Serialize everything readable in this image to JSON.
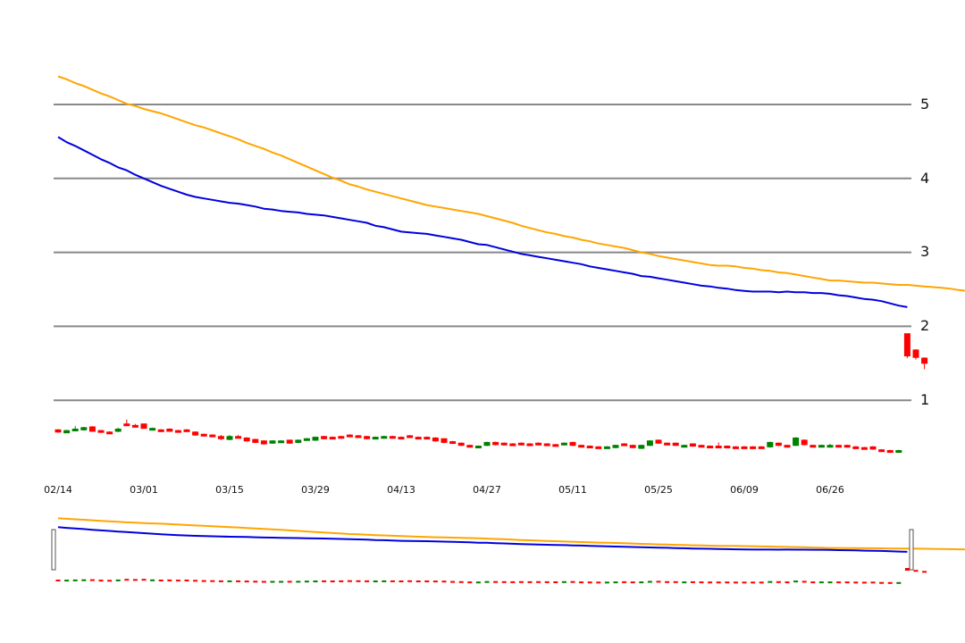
{
  "chart_data": {
    "type": "candlestick",
    "title": "",
    "xlabel": "",
    "ylabel": "",
    "ylim": [
      0,
      5.5
    ],
    "yticks": [
      "1",
      "2",
      "3",
      "4",
      "5"
    ],
    "xticks": [
      "02/14",
      "03/01",
      "03/15",
      "03/29",
      "04/13",
      "04/27",
      "05/11",
      "05/25",
      "06/09",
      "06/26"
    ],
    "grid": true,
    "up_color": "#008000",
    "down_color": "#ff0000",
    "series": [
      {
        "name": "MA long",
        "color": "#ffa500",
        "values": [
          5.38,
          5.34,
          5.29,
          5.25,
          5.2,
          5.15,
          5.11,
          5.06,
          5.01,
          4.98,
          4.94,
          4.91,
          4.88,
          4.84,
          4.8,
          4.76,
          4.72,
          4.69,
          4.65,
          4.61,
          4.57,
          4.53,
          4.48,
          4.44,
          4.4,
          4.35,
          4.31,
          4.26,
          4.21,
          4.16,
          4.11,
          4.06,
          4.01,
          3.97,
          3.92,
          3.89,
          3.85,
          3.82,
          3.79,
          3.76,
          3.73,
          3.7,
          3.67,
          3.64,
          3.62,
          3.6,
          3.58,
          3.56,
          3.54,
          3.52,
          3.49,
          3.46,
          3.43,
          3.4,
          3.36,
          3.33,
          3.3,
          3.27,
          3.25,
          3.22,
          3.2,
          3.17,
          3.15,
          3.12,
          3.1,
          3.08,
          3.06,
          3.03,
          3.0,
          2.98,
          2.95,
          2.93,
          2.91,
          2.89,
          2.87,
          2.85,
          2.83,
          2.82,
          2.82,
          2.81,
          2.79,
          2.78,
          2.76,
          2.75,
          2.73,
          2.72,
          2.7,
          2.68,
          2.66,
          2.64,
          2.62,
          2.62,
          2.61,
          2.6,
          2.59,
          2.59,
          2.58,
          2.57,
          2.56,
          2.56,
          2.55,
          2.54,
          2.53,
          2.52,
          2.51,
          2.49,
          2.48,
          2.46,
          2.44,
          2.43,
          2.4,
          2.38,
          2.36
        ]
      },
      {
        "name": "MA short",
        "color": "#0000dd",
        "values": [
          4.56,
          4.49,
          4.44,
          4.38,
          4.32,
          4.26,
          4.21,
          4.15,
          4.11,
          4.05,
          4.0,
          3.95,
          3.9,
          3.86,
          3.82,
          3.78,
          3.75,
          3.73,
          3.71,
          3.69,
          3.67,
          3.66,
          3.64,
          3.62,
          3.59,
          3.58,
          3.56,
          3.55,
          3.54,
          3.52,
          3.51,
          3.5,
          3.48,
          3.46,
          3.44,
          3.42,
          3.4,
          3.36,
          3.34,
          3.31,
          3.28,
          3.27,
          3.26,
          3.25,
          3.23,
          3.21,
          3.19,
          3.17,
          3.14,
          3.11,
          3.1,
          3.07,
          3.04,
          3.01,
          2.98,
          2.96,
          2.94,
          2.92,
          2.9,
          2.88,
          2.86,
          2.84,
          2.81,
          2.79,
          2.77,
          2.75,
          2.73,
          2.71,
          2.68,
          2.67,
          2.65,
          2.63,
          2.61,
          2.59,
          2.57,
          2.55,
          2.54,
          2.52,
          2.51,
          2.49,
          2.48,
          2.47,
          2.47,
          2.47,
          2.46,
          2.47,
          2.46,
          2.46,
          2.45,
          2.45,
          2.44,
          2.42,
          2.41,
          2.39,
          2.37,
          2.36,
          2.34,
          2.31,
          2.28,
          2.26
        ]
      }
    ],
    "candles": [
      {
        "o": 0.6,
        "c": 0.57,
        "h": 0.61,
        "l": 0.56
      },
      {
        "o": 0.56,
        "c": 0.59,
        "h": 0.6,
        "l": 0.56
      },
      {
        "o": 0.6,
        "c": 0.61,
        "h": 0.65,
        "l": 0.59
      },
      {
        "o": 0.6,
        "c": 0.63,
        "h": 0.64,
        "l": 0.59
      },
      {
        "o": 0.64,
        "c": 0.58,
        "h": 0.65,
        "l": 0.58
      },
      {
        "o": 0.59,
        "c": 0.57,
        "h": 0.6,
        "l": 0.56
      },
      {
        "o": 0.57,
        "c": 0.56,
        "h": 0.58,
        "l": 0.55
      },
      {
        "o": 0.58,
        "c": 0.61,
        "h": 0.63,
        "l": 0.57
      },
      {
        "o": 0.68,
        "c": 0.66,
        "h": 0.74,
        "l": 0.65
      },
      {
        "o": 0.66,
        "c": 0.65,
        "h": 0.68,
        "l": 0.64
      },
      {
        "o": 0.68,
        "c": 0.62,
        "h": 0.68,
        "l": 0.62
      },
      {
        "o": 0.6,
        "c": 0.62,
        "h": 0.63,
        "l": 0.6
      },
      {
        "o": 0.6,
        "c": 0.59,
        "h": 0.61,
        "l": 0.58
      },
      {
        "o": 0.61,
        "c": 0.58,
        "h": 0.62,
        "l": 0.58
      },
      {
        "o": 0.59,
        "c": 0.58,
        "h": 0.6,
        "l": 0.57
      },
      {
        "o": 0.6,
        "c": 0.58,
        "h": 0.61,
        "l": 0.57
      },
      {
        "o": 0.57,
        "c": 0.53,
        "h": 0.58,
        "l": 0.52
      },
      {
        "o": 0.54,
        "c": 0.52,
        "h": 0.55,
        "l": 0.51
      },
      {
        "o": 0.53,
        "c": 0.51,
        "h": 0.54,
        "l": 0.5
      },
      {
        "o": 0.51,
        "c": 0.48,
        "h": 0.53,
        "l": 0.46
      },
      {
        "o": 0.47,
        "c": 0.51,
        "h": 0.53,
        "l": 0.46
      },
      {
        "o": 0.51,
        "c": 0.5,
        "h": 0.53,
        "l": 0.49
      },
      {
        "o": 0.49,
        "c": 0.45,
        "h": 0.5,
        "l": 0.44
      },
      {
        "o": 0.47,
        "c": 0.43,
        "h": 0.48,
        "l": 0.42
      },
      {
        "o": 0.45,
        "c": 0.41,
        "h": 0.46,
        "l": 0.4
      },
      {
        "o": 0.42,
        "c": 0.45,
        "h": 0.46,
        "l": 0.41
      },
      {
        "o": 0.44,
        "c": 0.45,
        "h": 0.46,
        "l": 0.43
      },
      {
        "o": 0.46,
        "c": 0.42,
        "h": 0.47,
        "l": 0.41
      },
      {
        "o": 0.43,
        "c": 0.46,
        "h": 0.47,
        "l": 0.42
      },
      {
        "o": 0.47,
        "c": 0.48,
        "h": 0.49,
        "l": 0.46
      },
      {
        "o": 0.46,
        "c": 0.5,
        "h": 0.51,
        "l": 0.45
      },
      {
        "o": 0.51,
        "c": 0.48,
        "h": 0.52,
        "l": 0.47
      },
      {
        "o": 0.5,
        "c": 0.49,
        "h": 0.51,
        "l": 0.48
      },
      {
        "o": 0.51,
        "c": 0.49,
        "h": 0.52,
        "l": 0.48
      },
      {
        "o": 0.53,
        "c": 0.51,
        "h": 0.54,
        "l": 0.5
      },
      {
        "o": 0.52,
        "c": 0.5,
        "h": 0.53,
        "l": 0.49
      },
      {
        "o": 0.51,
        "c": 0.48,
        "h": 0.52,
        "l": 0.47
      },
      {
        "o": 0.48,
        "c": 0.5,
        "h": 0.51,
        "l": 0.47
      },
      {
        "o": 0.49,
        "c": 0.51,
        "h": 0.52,
        "l": 0.48
      },
      {
        "o": 0.51,
        "c": 0.49,
        "h": 0.52,
        "l": 0.48
      },
      {
        "o": 0.5,
        "c": 0.49,
        "h": 0.51,
        "l": 0.48
      },
      {
        "o": 0.52,
        "c": 0.5,
        "h": 0.53,
        "l": 0.49
      },
      {
        "o": 0.5,
        "c": 0.49,
        "h": 0.51,
        "l": 0.48
      },
      {
        "o": 0.5,
        "c": 0.49,
        "h": 0.51,
        "l": 0.48
      },
      {
        "o": 0.49,
        "c": 0.45,
        "h": 0.5,
        "l": 0.44
      },
      {
        "o": 0.48,
        "c": 0.43,
        "h": 0.48,
        "l": 0.42
      },
      {
        "o": 0.44,
        "c": 0.42,
        "h": 0.45,
        "l": 0.41
      },
      {
        "o": 0.42,
        "c": 0.39,
        "h": 0.43,
        "l": 0.38
      },
      {
        "o": 0.39,
        "c": 0.38,
        "h": 0.4,
        "l": 0.37
      },
      {
        "o": 0.37,
        "c": 0.38,
        "h": 0.39,
        "l": 0.36
      },
      {
        "o": 0.39,
        "c": 0.43,
        "h": 0.44,
        "l": 0.38
      },
      {
        "o": 0.43,
        "c": 0.4,
        "h": 0.44,
        "l": 0.39
      },
      {
        "o": 0.42,
        "c": 0.4,
        "h": 0.43,
        "l": 0.39
      },
      {
        "o": 0.41,
        "c": 0.4,
        "h": 0.42,
        "l": 0.39
      },
      {
        "o": 0.42,
        "c": 0.4,
        "h": 0.43,
        "l": 0.39
      },
      {
        "o": 0.41,
        "c": 0.4,
        "h": 0.42,
        "l": 0.39
      },
      {
        "o": 0.42,
        "c": 0.4,
        "h": 0.43,
        "l": 0.39
      },
      {
        "o": 0.41,
        "c": 0.4,
        "h": 0.42,
        "l": 0.39
      },
      {
        "o": 0.4,
        "c": 0.39,
        "h": 0.41,
        "l": 0.38
      },
      {
        "o": 0.4,
        "c": 0.42,
        "h": 0.43,
        "l": 0.39
      },
      {
        "o": 0.43,
        "c": 0.39,
        "h": 0.44,
        "l": 0.38
      },
      {
        "o": 0.39,
        "c": 0.37,
        "h": 0.4,
        "l": 0.36
      },
      {
        "o": 0.38,
        "c": 0.36,
        "h": 0.39,
        "l": 0.35
      },
      {
        "o": 0.37,
        "c": 0.36,
        "h": 0.38,
        "l": 0.35
      },
      {
        "o": 0.36,
        "c": 0.37,
        "h": 0.38,
        "l": 0.35
      },
      {
        "o": 0.36,
        "c": 0.39,
        "h": 0.4,
        "l": 0.35
      },
      {
        "o": 0.41,
        "c": 0.39,
        "h": 0.42,
        "l": 0.38
      },
      {
        "o": 0.39,
        "c": 0.36,
        "h": 0.4,
        "l": 0.35
      },
      {
        "o": 0.35,
        "c": 0.39,
        "h": 0.4,
        "l": 0.34
      },
      {
        "o": 0.39,
        "c": 0.45,
        "h": 0.46,
        "l": 0.38
      },
      {
        "o": 0.46,
        "c": 0.42,
        "h": 0.47,
        "l": 0.41
      },
      {
        "o": 0.42,
        "c": 0.41,
        "h": 0.43,
        "l": 0.4
      },
      {
        "o": 0.42,
        "c": 0.39,
        "h": 0.43,
        "l": 0.38
      },
      {
        "o": 0.38,
        "c": 0.39,
        "h": 0.4,
        "l": 0.37
      },
      {
        "o": 0.41,
        "c": 0.38,
        "h": 0.42,
        "l": 0.37
      },
      {
        "o": 0.39,
        "c": 0.37,
        "h": 0.4,
        "l": 0.36
      },
      {
        "o": 0.38,
        "c": 0.37,
        "h": 0.39,
        "l": 0.36
      },
      {
        "o": 0.38,
        "c": 0.37,
        "h": 0.43,
        "l": 0.36
      },
      {
        "o": 0.38,
        "c": 0.36,
        "h": 0.39,
        "l": 0.35
      },
      {
        "o": 0.37,
        "c": 0.36,
        "h": 0.38,
        "l": 0.35
      },
      {
        "o": 0.37,
        "c": 0.36,
        "h": 0.38,
        "l": 0.35
      },
      {
        "o": 0.37,
        "c": 0.35,
        "h": 0.38,
        "l": 0.34
      },
      {
        "o": 0.37,
        "c": 0.36,
        "h": 0.38,
        "l": 0.35
      },
      {
        "o": 0.37,
        "c": 0.43,
        "h": 0.44,
        "l": 0.36
      },
      {
        "o": 0.42,
        "c": 0.39,
        "h": 0.43,
        "l": 0.38
      },
      {
        "o": 0.39,
        "c": 0.38,
        "h": 0.4,
        "l": 0.37
      },
      {
        "o": 0.39,
        "c": 0.49,
        "h": 0.5,
        "l": 0.38
      },
      {
        "o": 0.46,
        "c": 0.4,
        "h": 0.47,
        "l": 0.39
      },
      {
        "o": 0.39,
        "c": 0.38,
        "h": 0.4,
        "l": 0.37
      },
      {
        "o": 0.38,
        "c": 0.39,
        "h": 0.4,
        "l": 0.37
      },
      {
        "o": 0.38,
        "c": 0.39,
        "h": 0.41,
        "l": 0.37
      },
      {
        "o": 0.39,
        "c": 0.38,
        "h": 0.4,
        "l": 0.37
      },
      {
        "o": 0.39,
        "c": 0.37,
        "h": 0.4,
        "l": 0.36
      },
      {
        "o": 0.37,
        "c": 0.35,
        "h": 0.38,
        "l": 0.34
      },
      {
        "o": 0.36,
        "c": 0.35,
        "h": 0.37,
        "l": 0.34
      },
      {
        "o": 0.37,
        "c": 0.34,
        "h": 0.38,
        "l": 0.33
      },
      {
        "o": 0.33,
        "c": 0.32,
        "h": 0.34,
        "l": 0.31
      },
      {
        "o": 0.32,
        "c": 0.31,
        "h": 0.33,
        "l": 0.3
      },
      {
        "o": 0.31,
        "c": 0.32,
        "h": 0.33,
        "l": 0.3
      },
      {
        "o": 1.9,
        "c": 1.6,
        "h": 1.9,
        "l": 1.57
      },
      {
        "o": 1.68,
        "c": 1.58,
        "h": 1.69,
        "l": 1.55
      },
      {
        "o": 1.57,
        "c": 1.5,
        "h": 1.58,
        "l": 1.42
      }
    ]
  }
}
